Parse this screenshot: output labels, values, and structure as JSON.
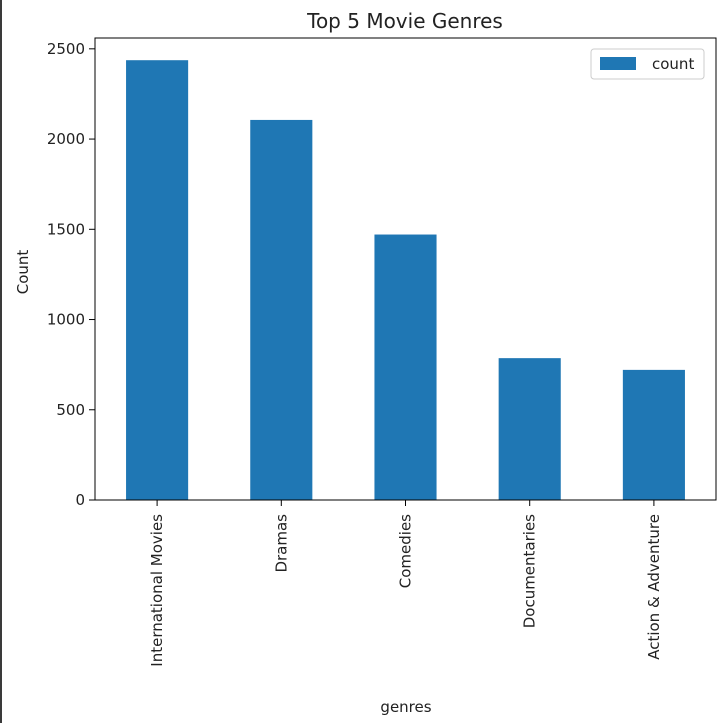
{
  "chart_data": {
    "type": "bar",
    "title": "Top 5 Movie Genres",
    "xlabel": "genres",
    "ylabel": "Count",
    "categories": [
      "International Movies",
      "Dramas",
      "Comedies",
      "Documentaries",
      "Action & Adventure"
    ],
    "series": [
      {
        "name": "count",
        "values": [
          2437,
          2106,
          1471,
          786,
          721
        ]
      }
    ],
    "ylim": [
      0,
      2560
    ],
    "yticks": [
      0,
      500,
      1000,
      1500,
      2000,
      2500
    ],
    "ytick_labels": [
      "0",
      "500",
      "1000",
      "1500",
      "2000",
      "2500"
    ],
    "grid": false,
    "legend_position": "top-right",
    "bar_color": "#1f77b4"
  }
}
